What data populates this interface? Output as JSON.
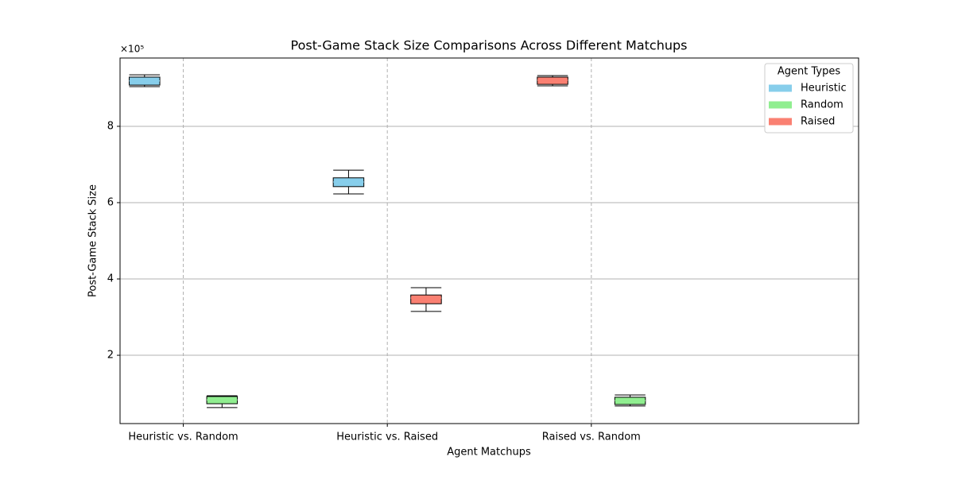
{
  "chart_data": {
    "type": "box",
    "title": "Post-Game Stack Size Comparisons Across Different Matchups",
    "x_label": "Agent Matchups",
    "y_label": "Post-Game Stack Size",
    "y_offset_label": "×10⁵",
    "categories": [
      "Heuristic vs. Random",
      "Heuristic vs. Raised",
      "Raised vs. Random"
    ],
    "series": [
      {
        "name": "Heuristic",
        "color": "#87ceeb"
      },
      {
        "name": "Random",
        "color": "#90ee90"
      },
      {
        "name": "Raised",
        "color": "#fa8072"
      }
    ],
    "boxes": [
      {
        "category": 0,
        "series": 0,
        "whislo": 9.04,
        "q1": 9.08,
        "med": 9.19,
        "q3": 9.29,
        "whishi": 9.35
      },
      {
        "category": 0,
        "series": 1,
        "whislo": 0.63,
        "q1": 0.73,
        "med": 0.83,
        "q3": 0.92,
        "whishi": 0.94
      },
      {
        "category": 1,
        "series": 0,
        "whislo": 6.23,
        "q1": 6.42,
        "med": 6.54,
        "q3": 6.65,
        "whishi": 6.85
      },
      {
        "category": 1,
        "series": 2,
        "whislo": 3.15,
        "q1": 3.35,
        "med": 3.5,
        "q3": 3.58,
        "whishi": 3.77
      },
      {
        "category": 2,
        "series": 2,
        "whislo": 9.06,
        "q1": 9.1,
        "med": 9.21,
        "q3": 9.29,
        "whishi": 9.33
      },
      {
        "category": 2,
        "series": 1,
        "whislo": 0.67,
        "q1": 0.71,
        "med": 0.81,
        "q3": 0.9,
        "whishi": 0.96
      }
    ],
    "ylim": [
      0.21,
      9.79
    ],
    "yticks": [
      2,
      4,
      6,
      8
    ],
    "grid": true,
    "legend_title": "Agent Types",
    "legend": "upper right"
  }
}
